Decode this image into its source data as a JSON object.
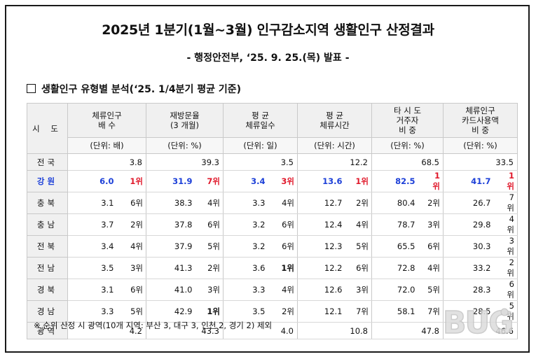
{
  "title": "2025년 1분기(1월~3월) 인구감소지역 생활인구 산정결과",
  "subtitle": "- 행정안전부, ‘25. 9. 25.(목) 발표 -",
  "section_heading": "생활인구 유형별 분석(‘25. 1/4분기 평균 기준)",
  "table": {
    "header_region": "시 도",
    "columns": [
      {
        "line1": "체류인구",
        "line2": "배      수",
        "unit": "(단위: 배)"
      },
      {
        "line1": "재방문율",
        "line2": "(3 개월)",
        "unit": "(단위: %)"
      },
      {
        "line1": "평      균",
        "line2": "체류일수",
        "unit": "(단위: 일)"
      },
      {
        "line1": "평      균",
        "line2": "체류시간",
        "unit": "(단위: 시간)"
      },
      {
        "line1": "타 시 도",
        "line2": "거주자",
        "line3": "비    중",
        "unit": "(단위: %)"
      },
      {
        "line1": "체류인구",
        "line2": "카드사용액",
        "line3": "비    중",
        "unit": "(단위: %)"
      }
    ],
    "rows": [
      {
        "region": "전국",
        "cells": [
          [
            "3.8",
            ""
          ],
          [
            "39.3",
            ""
          ],
          [
            "3.5",
            ""
          ],
          [
            "12.2",
            ""
          ],
          [
            "68.5",
            ""
          ],
          [
            "33.5",
            ""
          ]
        ],
        "highlight": false
      },
      {
        "region": "강원",
        "cells": [
          [
            "6.0",
            "1위"
          ],
          [
            "31.9",
            "7위"
          ],
          [
            "3.4",
            "3위"
          ],
          [
            "13.6",
            "1위"
          ],
          [
            "82.5",
            "1위"
          ],
          [
            "41.7",
            "1위"
          ]
        ],
        "highlight": true
      },
      {
        "region": "충북",
        "cells": [
          [
            "3.1",
            "6위"
          ],
          [
            "38.3",
            "4위"
          ],
          [
            "3.3",
            "4위"
          ],
          [
            "12.7",
            "2위"
          ],
          [
            "80.4",
            "2위"
          ],
          [
            "26.7",
            "7위"
          ]
        ],
        "highlight": false
      },
      {
        "region": "충남",
        "cells": [
          [
            "3.7",
            "2위"
          ],
          [
            "37.8",
            "6위"
          ],
          [
            "3.2",
            "6위"
          ],
          [
            "12.4",
            "4위"
          ],
          [
            "78.7",
            "3위"
          ],
          [
            "29.8",
            "4위"
          ]
        ],
        "highlight": false
      },
      {
        "region": "전북",
        "cells": [
          [
            "3.4",
            "4위"
          ],
          [
            "37.9",
            "5위"
          ],
          [
            "3.2",
            "6위"
          ],
          [
            "12.3",
            "5위"
          ],
          [
            "65.5",
            "6위"
          ],
          [
            "30.3",
            "3위"
          ]
        ],
        "highlight": false
      },
      {
        "region": "전남",
        "cells": [
          [
            "3.5",
            "3위"
          ],
          [
            "41.3",
            "2위"
          ],
          [
            "3.6",
            "1위"
          ],
          [
            "12.2",
            "6위"
          ],
          [
            "72.8",
            "4위"
          ],
          [
            "33.2",
            "2위"
          ]
        ],
        "highlight": false,
        "bold_ranks": [
          2
        ]
      },
      {
        "region": "경북",
        "cells": [
          [
            "3.1",
            "6위"
          ],
          [
            "41.0",
            "3위"
          ],
          [
            "3.3",
            "4위"
          ],
          [
            "12.6",
            "3위"
          ],
          [
            "72.0",
            "5위"
          ],
          [
            "28.3",
            "6위"
          ]
        ],
        "highlight": false
      },
      {
        "region": "경남",
        "cells": [
          [
            "3.3",
            "5위"
          ],
          [
            "42.9",
            "1위"
          ],
          [
            "3.5",
            "2위"
          ],
          [
            "12.1",
            "7위"
          ],
          [
            "58.1",
            "7위"
          ],
          [
            "28.5",
            "5위"
          ]
        ],
        "highlight": false,
        "bold_ranks": [
          1
        ]
      },
      {
        "region": "광역",
        "cells": [
          [
            "4.2",
            ""
          ],
          [
            "43.3",
            ""
          ],
          [
            "4.0",
            ""
          ],
          [
            "10.8",
            ""
          ],
          [
            "47.8",
            ""
          ],
          [
            "46.6",
            ""
          ]
        ],
        "highlight": false
      }
    ]
  },
  "footnote": "※ 순위 산정 시 광역(10개 지역: 부산 3, 대구 3, 인천 2, 경기 2) 제외",
  "logo_text": "BUG"
}
